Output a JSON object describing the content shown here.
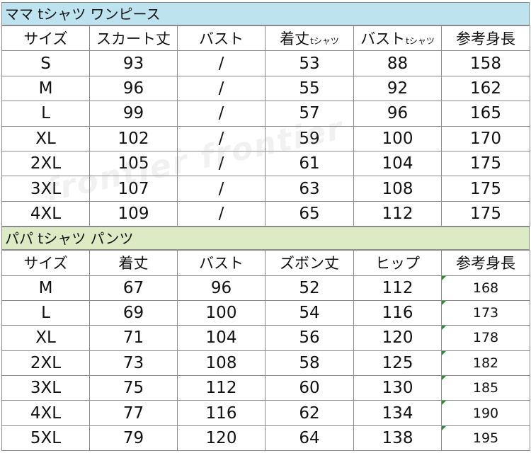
{
  "mama": {
    "title": "ママ tシャツ ワンピース",
    "headers": [
      "サイズ",
      "スカート丈",
      "バスト",
      "着丈",
      "バスト",
      "参考身長"
    ],
    "header_suffix": {
      "c4": "tシャツ",
      "c5": "tシャツ"
    },
    "rows": [
      [
        "S",
        "93",
        "/",
        "53",
        "88",
        "158"
      ],
      [
        "M",
        "96",
        "/",
        "55",
        "92",
        "162"
      ],
      [
        "L",
        "99",
        "/",
        "57",
        "96",
        "165"
      ],
      [
        "XL",
        "102",
        "/",
        "59",
        "100",
        "170"
      ],
      [
        "2XL",
        "105",
        "/",
        "61",
        "104",
        "175"
      ],
      [
        "3XL",
        "107",
        "/",
        "63",
        "108",
        "175"
      ],
      [
        "4XL",
        "109",
        "/",
        "65",
        "112",
        "175"
      ]
    ]
  },
  "papa": {
    "title": "パパ tシャツ パンツ",
    "headers": [
      "サイズ",
      "着丈",
      "バスト",
      "ズボン丈",
      "ヒップ",
      "参考身長"
    ],
    "rows": [
      [
        "M",
        "67",
        "96",
        "52",
        "112",
        "168"
      ],
      [
        "L",
        "69",
        "100",
        "54",
        "116",
        "173"
      ],
      [
        "XL",
        "71",
        "104",
        "56",
        "120",
        "178"
      ],
      [
        "2XL",
        "73",
        "108",
        "58",
        "125",
        "182"
      ],
      [
        "3XL",
        "75",
        "112",
        "60",
        "130",
        "185"
      ],
      [
        "4XL",
        "77",
        "116",
        "62",
        "134",
        "190"
      ],
      [
        "5XL",
        "79",
        "120",
        "64",
        "138",
        "195"
      ]
    ]
  },
  "watermark": "frontier frontier"
}
